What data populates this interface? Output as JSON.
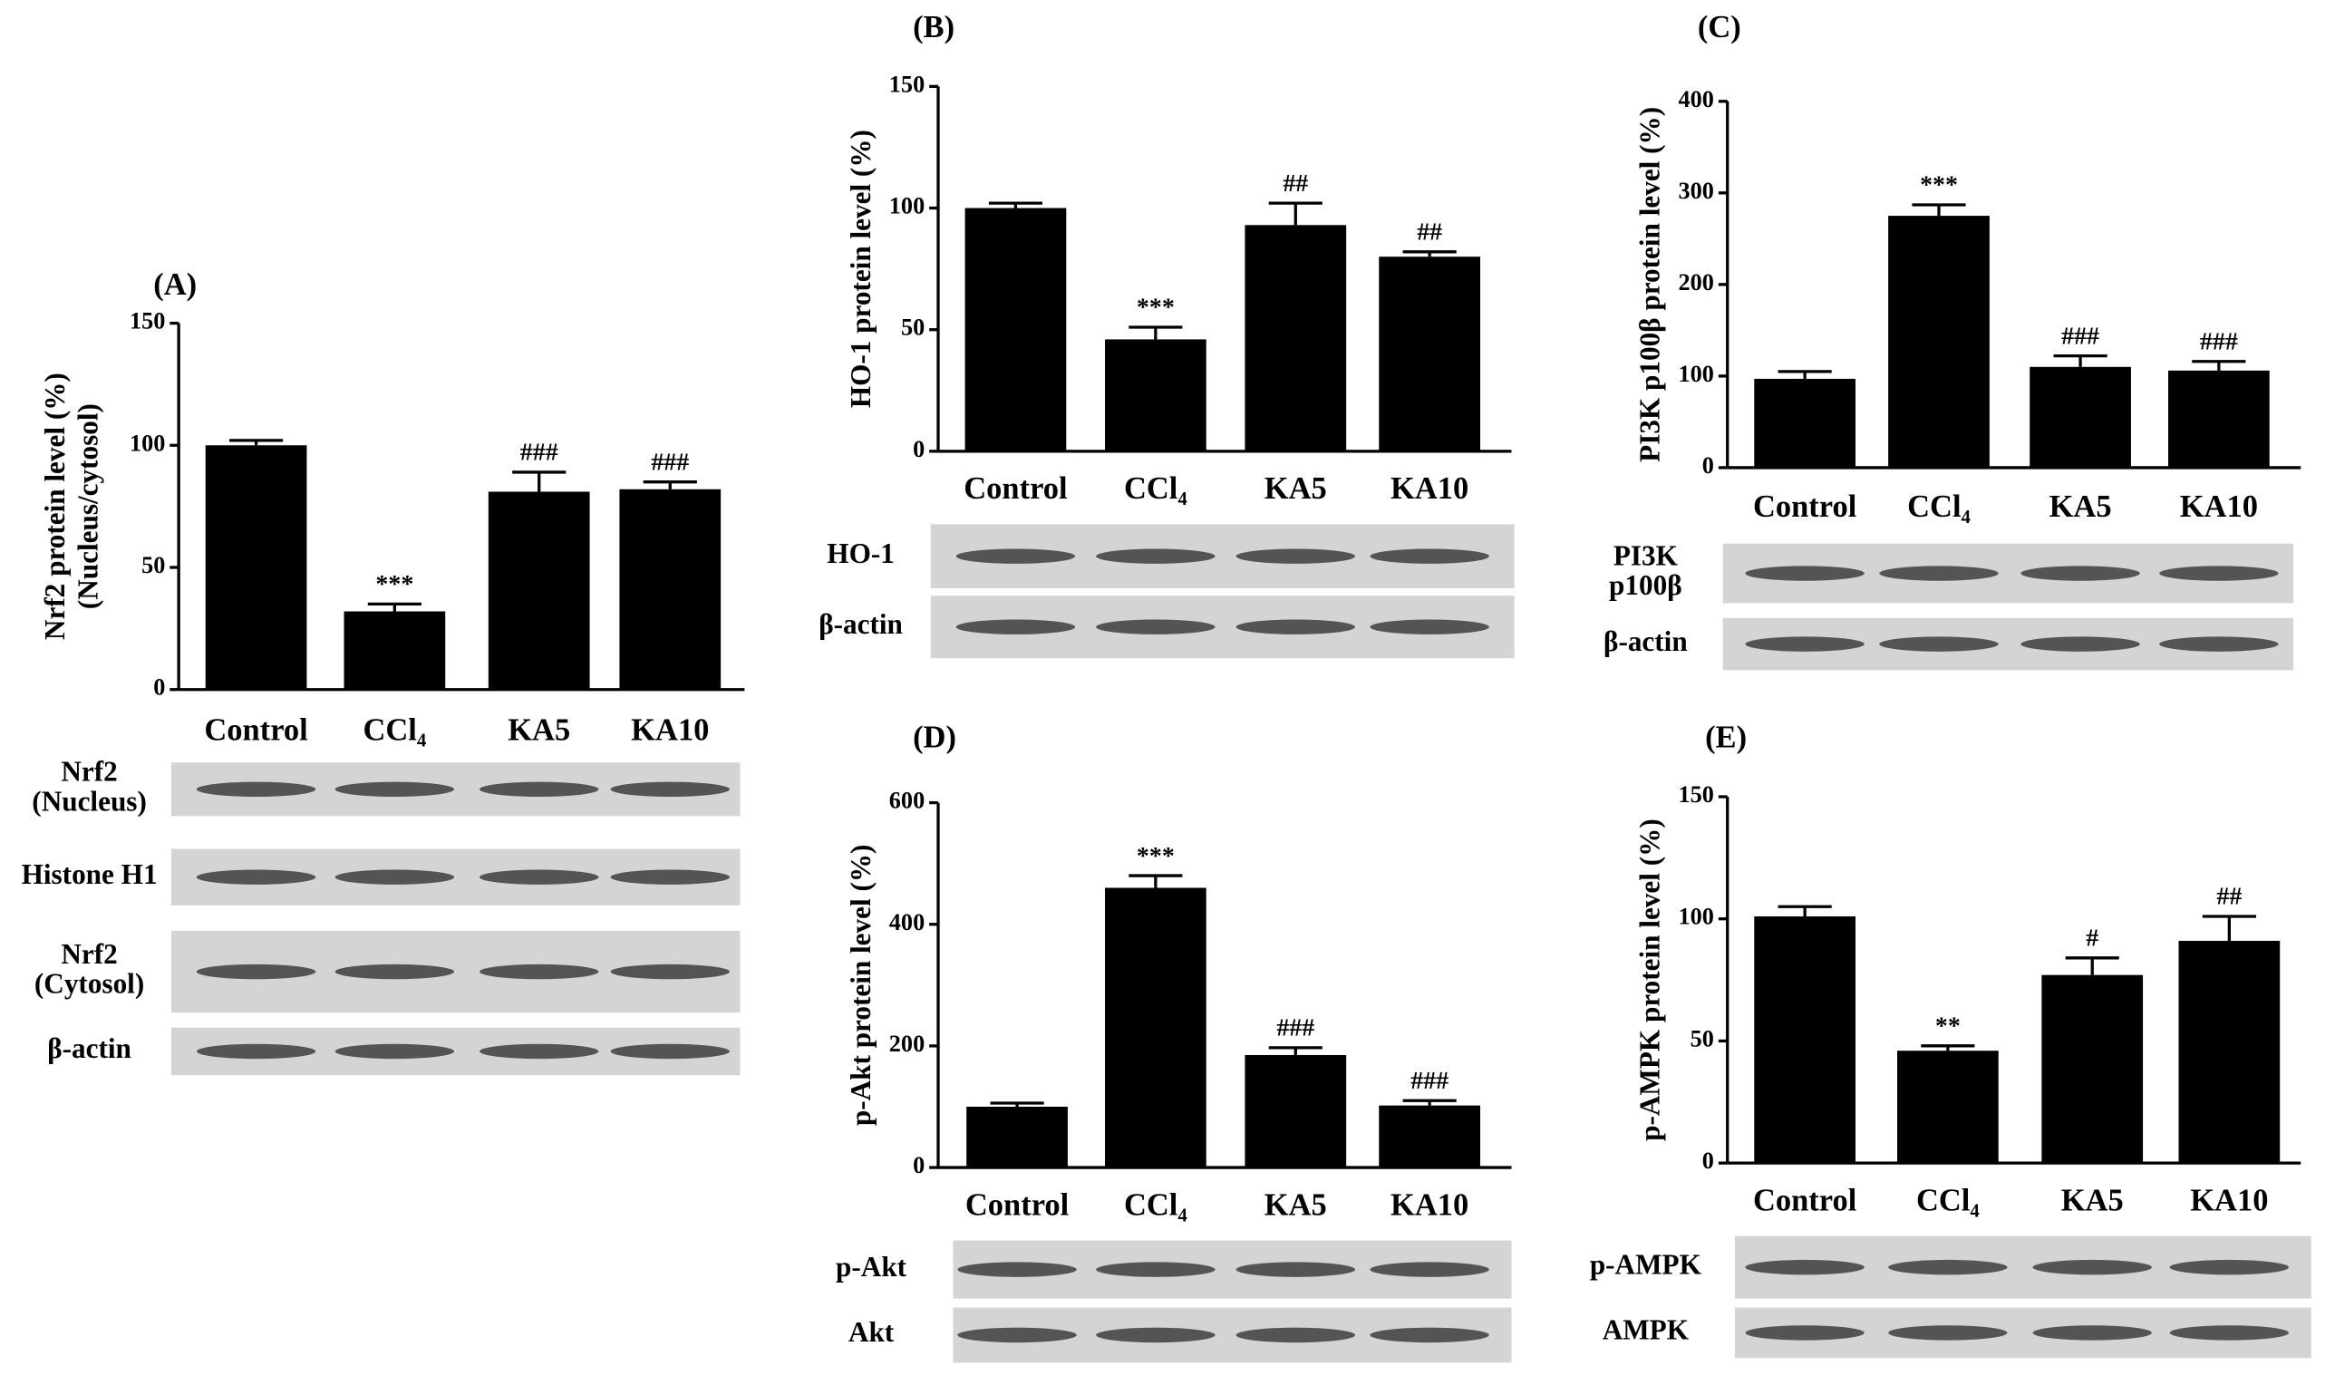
{
  "chart_data": [
    {
      "type": "bar",
      "title": "(A)",
      "ylabel": [
        "Nrf2 protein level (%)",
        "(Nucleus/cytosol)"
      ],
      "categories": [
        "Control",
        "CCl₄",
        "KA5",
        "KA10"
      ],
      "values": [
        100,
        32,
        81,
        82
      ],
      "errors": [
        2,
        3,
        8,
        3
      ],
      "annotations": [
        null,
        "***",
        "###",
        "###"
      ],
      "color": "#000000",
      "ylim": [
        0,
        150
      ],
      "yticks": [
        0,
        50,
        100,
        150
      ],
      "blot_labels": [
        [
          "Nrf2",
          "(Nucleus)"
        ],
        "Histone H1",
        [
          "Nrf2",
          "(Cytosol)"
        ],
        "β-actin"
      ]
    },
    {
      "type": "bar",
      "title": "(B)",
      "ylabel": [
        "HO-1 protein level (%)"
      ],
      "categories": [
        "Control",
        "CCl₄",
        "KA5",
        "KA10"
      ],
      "values": [
        100,
        46,
        93,
        80
      ],
      "errors": [
        2,
        5,
        9,
        2
      ],
      "annotations": [
        null,
        "***",
        "##",
        "##"
      ],
      "color": "#000000",
      "ylim": [
        0,
        150
      ],
      "yticks": [
        0,
        50,
        100,
        150
      ],
      "blot_labels": [
        "HO-1",
        "β-actin"
      ]
    },
    {
      "type": "bar",
      "title": "(C)",
      "ylabel": [
        "PI3K p100β protein level (%)"
      ],
      "categories": [
        "Control",
        "CCl₄",
        "KA5",
        "KA10"
      ],
      "values": [
        97,
        275,
        110,
        106
      ],
      "errors": [
        8,
        12,
        12,
        10
      ],
      "annotations": [
        null,
        "***",
        "###",
        "###"
      ],
      "color": "#000000",
      "ylim": [
        0,
        400
      ],
      "yticks": [
        0,
        100,
        200,
        300,
        400
      ],
      "blot_labels": [
        [
          "PI3K",
          "p100β"
        ],
        "β-actin"
      ]
    },
    {
      "type": "bar",
      "title": "(D)",
      "ylabel": [
        "p-Akt protein level (%)"
      ],
      "categories": [
        "Control",
        "CCl₄",
        "KA5",
        "KA10"
      ],
      "values": [
        100,
        460,
        185,
        102
      ],
      "errors": [
        6,
        20,
        12,
        8
      ],
      "annotations": [
        null,
        "***",
        "###",
        "###"
      ],
      "color": "#000000",
      "ylim": [
        0,
        600
      ],
      "yticks": [
        0,
        200,
        400,
        600
      ],
      "blot_labels": [
        "p-Akt",
        "Akt"
      ]
    },
    {
      "type": "bar",
      "title": "(E)",
      "ylabel": [
        "p-AMPK protein level (%)"
      ],
      "categories": [
        "Control",
        "CCl₄",
        "KA5",
        "KA10"
      ],
      "values": [
        101,
        46,
        77,
        91
      ],
      "errors": [
        4,
        2,
        7,
        10
      ],
      "annotations": [
        null,
        "**",
        "#",
        "##"
      ],
      "color": "#000000",
      "ylim": [
        0,
        150
      ],
      "yticks": [
        0,
        50,
        100,
        150
      ],
      "blot_labels": [
        "p-AMPK",
        "AMPK"
      ]
    }
  ]
}
